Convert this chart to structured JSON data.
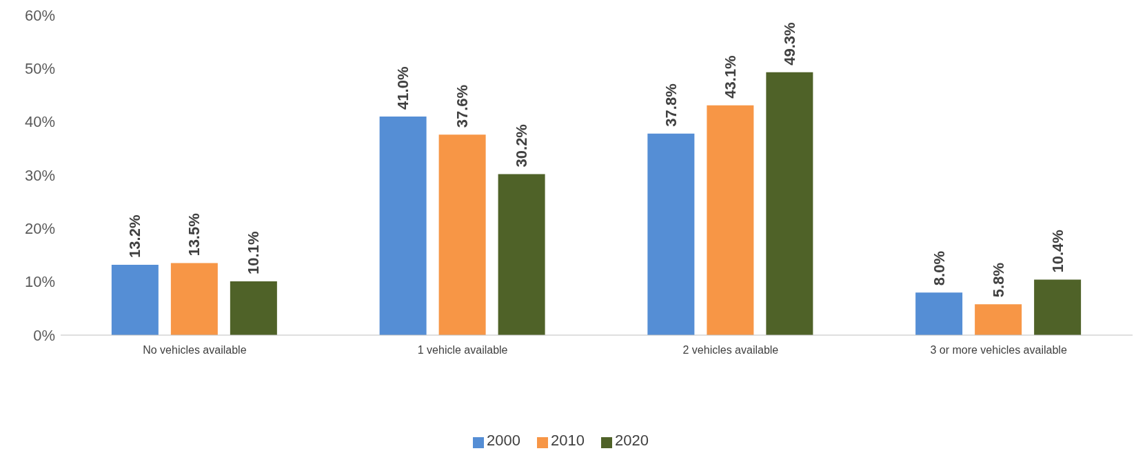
{
  "chart_data": {
    "type": "bar",
    "categories": [
      "No vehicles available",
      "1 vehicle available",
      "2 vehicles available",
      "3 or more vehicles available"
    ],
    "series": [
      {
        "name": "2000",
        "color": "#558ed5",
        "values": [
          13.2,
          41.0,
          37.8,
          8.0
        ],
        "value_labels": [
          "13.2%",
          "41.0%",
          "37.8%",
          "8.0%"
        ]
      },
      {
        "name": "2010",
        "color": "#f79646",
        "values": [
          13.5,
          37.6,
          43.1,
          5.8
        ],
        "value_labels": [
          "13.5%",
          "37.6%",
          "43.1%",
          "5.8%"
        ]
      },
      {
        "name": "2020",
        "color": "#4f6228",
        "values": [
          10.1,
          30.2,
          49.3,
          10.4
        ],
        "value_labels": [
          "10.1%",
          "30.2%",
          "49.3%",
          "10.4%"
        ]
      }
    ],
    "ylim": [
      0,
      60
    ],
    "yticks": [
      {
        "value": 0,
        "label": "0%"
      },
      {
        "value": 10,
        "label": "10%"
      },
      {
        "value": 20,
        "label": "20%"
      },
      {
        "value": 30,
        "label": "30%"
      },
      {
        "value": 40,
        "label": "40%"
      },
      {
        "value": 50,
        "label": "50%"
      },
      {
        "value": 60,
        "label": "60%"
      }
    ],
    "grid": false,
    "legend": "bottom"
  }
}
